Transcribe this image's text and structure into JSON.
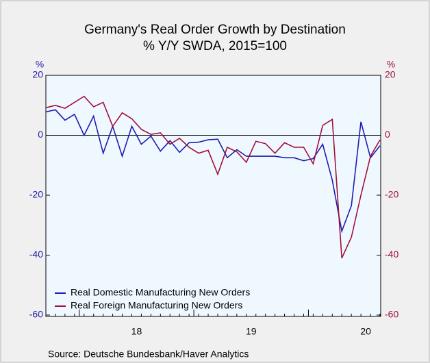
{
  "chart_data": {
    "type": "line",
    "title": "Germany's Real Order Growth by Destination",
    "subtitle": "% Y/Y   SWDA, 2015=100",
    "y_label": "%",
    "y2_label": "%",
    "source": "Source:  Deutsche Bundesbank/Haver Analytics",
    "categories": [
      null,
      null,
      null,
      null,
      null,
      null,
      null,
      null,
      null,
      null,
      null,
      null,
      null,
      null,
      null,
      null,
      null,
      null,
      null,
      null,
      null,
      null,
      null,
      null,
      null,
      null,
      null,
      null,
      null,
      null,
      null,
      null,
      null,
      null,
      null,
      null
    ],
    "year_labels": [
      "18",
      "19",
      "20"
    ],
    "ylim": [
      -60,
      20
    ],
    "yticks": [
      -60,
      -40,
      -20,
      0,
      20
    ],
    "y2lim": [
      -60,
      20
    ],
    "y2ticks": [
      -60,
      -40,
      -20,
      0,
      20
    ],
    "legend": "lower left",
    "series": [
      {
        "name": "Real Domestic Manufacturing New Orders",
        "color": "#1c1cb0",
        "values": [
          7.8,
          8.5,
          5,
          7,
          0,
          6.4,
          -6,
          3,
          -7,
          3,
          -3,
          -0.3,
          -5.3,
          -1.8,
          -5.7,
          -2.5,
          -2.3,
          -1.5,
          -1.3,
          -7.5,
          -4.8,
          -7,
          -7,
          -7,
          -7,
          -7.5,
          -7.5,
          -8.5,
          -7.8,
          -3,
          -15,
          -32,
          -23.5,
          4.5,
          -7.5,
          -3.5
        ]
      },
      {
        "name": "Real Foreign Manufacturing New Orders",
        "color": "#a0103a",
        "axis": "y2",
        "values": [
          9.2,
          10,
          9,
          11,
          13,
          9.5,
          11,
          3,
          7.5,
          5.5,
          2,
          0.3,
          0.8,
          -3,
          -1,
          -4,
          -6,
          -5,
          -13,
          -4,
          -5.5,
          -9,
          -2,
          -2.8,
          -6,
          -2.5,
          -4,
          -4,
          -9.5,
          3.3,
          5.3,
          -41,
          -34,
          -20,
          -7,
          -1.5
        ]
      }
    ]
  }
}
